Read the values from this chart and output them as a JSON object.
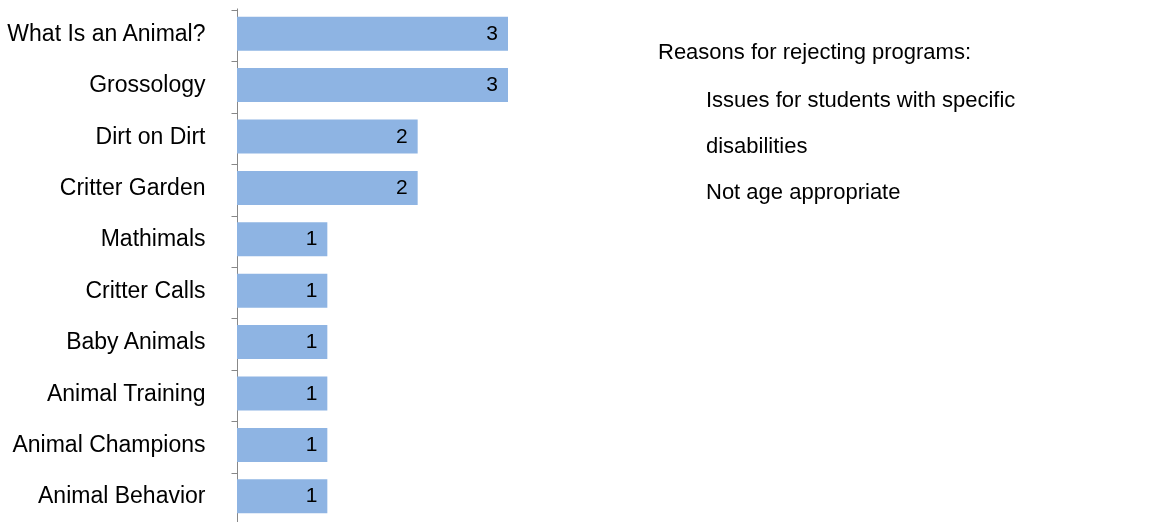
{
  "chart_data": {
    "type": "bar",
    "orientation": "horizontal",
    "categories": [
      "What Is an Animal?",
      "Grossology",
      "Dirt on Dirt",
      "Critter Garden",
      "Mathimals",
      "Critter Calls",
      "Baby Animals",
      "Animal Training",
      "Animal Champions",
      "Animal Behavior"
    ],
    "values": [
      3,
      3,
      2,
      2,
      1,
      1,
      1,
      1,
      1,
      1
    ],
    "color": "#8eb4e3",
    "data_labels": true,
    "annotations": [
      "Reasons for rejecting programs:",
      "Issues for students with specific disabilities",
      "Not age appropriate"
    ]
  }
}
